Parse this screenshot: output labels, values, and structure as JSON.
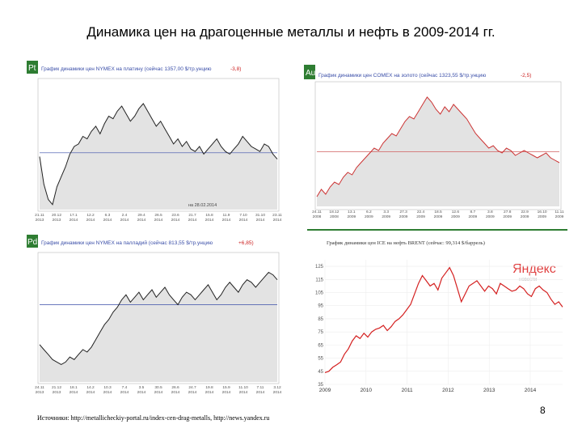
{
  "slide": {
    "title": "Динамика цен на драгоценные металлы и нефть  в 2009-2014 гг.",
    "source": "Источники: http://metallicheckiy-portal.ru/index-cen-drag-metalls, http://news.yandex.ru",
    "page_number": "8"
  },
  "colors": {
    "badge_green": "#2e7d32",
    "header_blue": "#3a4ea8",
    "line_black": "#222222",
    "area_gray": "#e3e3e3",
    "baseline_blue": "#3a4ea8",
    "gold_red_line": "#cc3333",
    "brent_red": "#d42020",
    "yandex_red": "#e04040"
  },
  "chart_data": [
    {
      "id": "platinum",
      "type": "area",
      "badge": "Pt",
      "title": "График динамики цен NYMEX на платину (сейчас 1357,00 $/тр.унцию",
      "change": "-3,8)",
      "note": "на 28.02.2014",
      "x_tick_labels": [
        "21.11 2013",
        "20.12 2013",
        "17.1 2014",
        "12.2 2014",
        "6.3 2014",
        "2.4 2014",
        "29.4 2014",
        "26.5 2014",
        "23.6 2014",
        "21.7 2014",
        "15.8 2014",
        "11.9 2014",
        "7.10 2014",
        "31.10 2014",
        "23.11 2014"
      ],
      "y_range": [
        0,
        100
      ],
      "baseline": 45,
      "values": [
        42,
        20,
        8,
        4,
        18,
        26,
        34,
        44,
        50,
        52,
        58,
        56,
        62,
        66,
        60,
        68,
        74,
        72,
        78,
        82,
        76,
        70,
        74,
        80,
        84,
        78,
        72,
        66,
        70,
        64,
        58,
        52,
        56,
        50,
        54,
        48,
        46,
        50,
        44,
        48,
        52,
        56,
        50,
        46,
        44,
        48,
        52,
        58,
        54,
        50,
        48,
        46,
        52,
        50,
        44,
        40
      ]
    },
    {
      "id": "gold",
      "type": "area",
      "badge": "Au",
      "title": "График динамики цен COMEX на золото (сейчас 1323,55 $/тр.унцию",
      "change": "-2,5)",
      "x_tick_labels": [
        "24.11 2008",
        "18.12 2008",
        "13.1 2009",
        "6.2 2009",
        "3.3 2009",
        "27.3 2009",
        "22.4 2009",
        "18.5 2009",
        "12.6 2009",
        "8.7 2009",
        "3.8 2009",
        "27.8 2009",
        "22.9 2009",
        "16.10 2009",
        "11.11 2009"
      ],
      "y_range": [
        0,
        100
      ],
      "baseline": 45,
      "values": [
        8,
        14,
        10,
        16,
        20,
        18,
        24,
        28,
        26,
        32,
        36,
        40,
        44,
        48,
        46,
        52,
        56,
        60,
        58,
        64,
        70,
        74,
        72,
        78,
        84,
        90,
        86,
        80,
        76,
        82,
        78,
        84,
        80,
        76,
        72,
        66,
        60,
        56,
        52,
        48,
        50,
        46,
        44,
        48,
        46,
        42,
        44,
        46,
        44,
        42,
        40,
        42,
        44,
        40,
        38,
        36
      ]
    },
    {
      "id": "palladium",
      "type": "area",
      "badge": "Pd",
      "title": "График динамики цен NYMEX на палладий (сейчас 813,55 $/тр.унцию",
      "change": "+6,85)",
      "x_tick_labels": [
        "24.11 2013",
        "21.12 2013",
        "18.1 2014",
        "14.2 2014",
        "10.3 2014",
        "7.4 2014",
        "3.5 2014",
        "30.5 2014",
        "26.6 2014",
        "24.7 2014",
        "19.8 2014",
        "15.9 2014",
        "11.10 2014",
        "7.11 2014",
        "3.12 2014"
      ],
      "y_range": [
        0,
        100
      ],
      "baseline": 62,
      "values": [
        30,
        26,
        22,
        18,
        16,
        14,
        16,
        20,
        18,
        22,
        26,
        24,
        28,
        34,
        40,
        46,
        50,
        56,
        60,
        66,
        70,
        64,
        68,
        72,
        66,
        70,
        74,
        68,
        72,
        76,
        70,
        66,
        62,
        68,
        72,
        70,
        66,
        70,
        74,
        78,
        72,
        66,
        70,
        76,
        80,
        76,
        72,
        78,
        82,
        80,
        76,
        80,
        84,
        88,
        86,
        82
      ]
    },
    {
      "id": "brent",
      "type": "line",
      "title": "График динамики цен ICE на нефть BRENT (сейчас: 99,314 $/баррель)",
      "logo": "Яндекс",
      "logo_sub": "новости",
      "x_tick_labels": [
        "2009",
        "2010",
        "2011",
        "2012",
        "2013",
        "2014"
      ],
      "y_tick_labels": [
        "125",
        "115",
        "105",
        "95",
        "85",
        "75",
        "65",
        "55",
        "45",
        "35"
      ],
      "y_range": [
        35,
        130
      ],
      "values": [
        44,
        45,
        48,
        50,
        52,
        58,
        62,
        68,
        72,
        70,
        74,
        71,
        75,
        77,
        78,
        80,
        76,
        79,
        83,
        85,
        88,
        92,
        96,
        104,
        112,
        118,
        114,
        110,
        112,
        107,
        116,
        120,
        124,
        118,
        108,
        98,
        104,
        110,
        112,
        114,
        110,
        106,
        110,
        108,
        104,
        112,
        110,
        108,
        106,
        107,
        110,
        108,
        104,
        102,
        108,
        110,
        107,
        105,
        100,
        96,
        98,
        94
      ]
    }
  ]
}
